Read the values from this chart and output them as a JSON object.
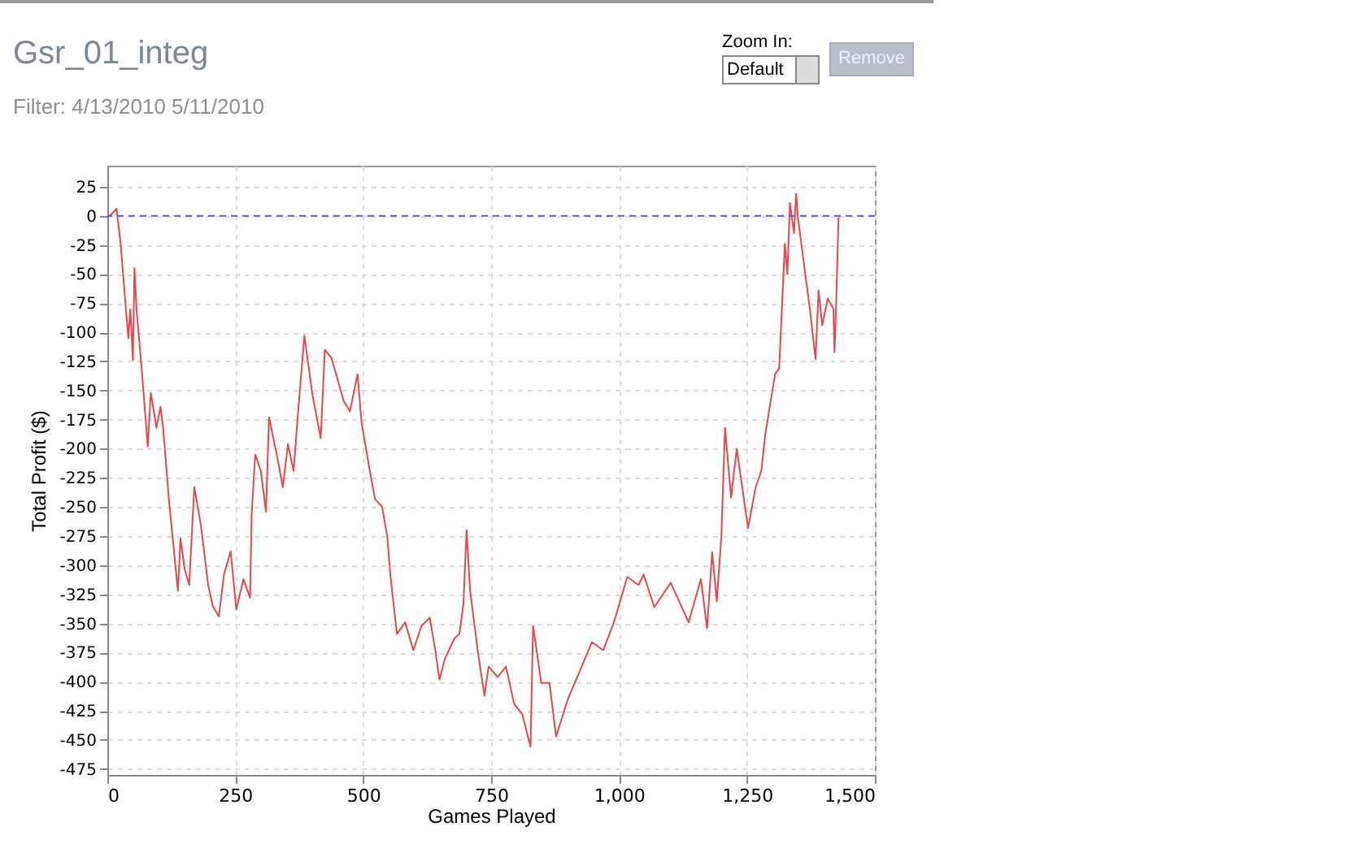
{
  "chart_data": {
    "type": "line",
    "title": "Gsr_01_integ",
    "subtitle": "Filter: 4/13/2010 5/11/2010",
    "xlabel": "Games Played",
    "ylabel": "Total Profit ($)",
    "annotations": [
      "Zoom In:",
      "Default",
      "Remove"
    ],
    "x": [
      0,
      7,
      18,
      26,
      41,
      45,
      50,
      53,
      57,
      68,
      79,
      85,
      96,
      104,
      109,
      121,
      138,
      143,
      151,
      160,
      170,
      183,
      197,
      206,
      218,
      228,
      241,
      252,
      266,
      279,
      282,
      289,
      300,
      310,
      316,
      332,
      343,
      353,
      364,
      372,
      385,
      401,
      417,
      425,
      438,
      462,
      474,
      489,
      497,
      513,
      523,
      537,
      547,
      553,
      566,
      582,
      598,
      614,
      630,
      641,
      649,
      660,
      678,
      688,
      696,
      702,
      709,
      725,
      737,
      745,
      763,
      779,
      795,
      811,
      827,
      832,
      848,
      864,
      877,
      900,
      927,
      947,
      969,
      990,
      1016,
      1038,
      1048,
      1069,
      1101,
      1136,
      1160,
      1172,
      1182,
      1191,
      1200,
      1207,
      1219,
      1230,
      1252,
      1267,
      1278,
      1286,
      1305,
      1313,
      1324,
      1329,
      1334,
      1342,
      1346,
      1350,
      1361,
      1373,
      1384,
      1390,
      1397,
      1408,
      1419,
      1421,
      1424,
      1429
    ],
    "series": [
      {
        "color": "#e8474a",
        "values": [
          -1,
          1,
          6,
          -24,
          -105,
          -80,
          -124,
          -45,
          -80,
          -136,
          -198,
          -152,
          -182,
          -164,
          -182,
          -247,
          -322,
          -277,
          -303,
          -317,
          -233,
          -266,
          -317,
          -335,
          -344,
          -308,
          -288,
          -338,
          -312,
          -328,
          -257,
          -205,
          -219,
          -254,
          -173,
          -207,
          -233,
          -196,
          -219,
          -173,
          -103,
          -154,
          -191,
          -115,
          -122,
          -159,
          -168,
          -136,
          -178,
          -219,
          -243,
          -250,
          -275,
          -308,
          -359,
          -349,
          -373,
          -352,
          -345,
          -373,
          -398,
          -380,
          -363,
          -359,
          -333,
          -270,
          -322,
          -377,
          -412,
          -387,
          -396,
          -387,
          -419,
          -428,
          -456,
          -352,
          -401,
          -401,
          -447,
          -415,
          -387,
          -366,
          -373,
          -349,
          -310,
          -317,
          -308,
          -336,
          -315,
          -349,
          -312,
          -354,
          -289,
          -331,
          -275,
          -182,
          -242,
          -200,
          -268,
          -233,
          -219,
          -187,
          -136,
          -131,
          -24,
          -50,
          11,
          -15,
          19,
          -3,
          -40,
          -80,
          -123,
          -64,
          -94,
          -71,
          -80,
          -117,
          -80,
          -1
        ]
      }
    ],
    "xlim": [
      0,
      1500
    ],
    "xticks": [
      0,
      250,
      500,
      750,
      {
        "value": 1000,
        "label": "1,000"
      },
      {
        "value": 1250,
        "label": "1,250"
      },
      {
        "value": 1500,
        "label": "1,500"
      }
    ],
    "ylim": [
      -480,
      43
    ],
    "yticks": [
      25,
      0,
      -25,
      -50,
      -75,
      -100,
      -125,
      -150,
      -175,
      -200,
      -225,
      -250,
      -275,
      -300,
      -325,
      -350,
      -375,
      -400,
      -425,
      -450,
      -475
    ],
    "grid": true,
    "line_style": "solid",
    "ref_lines": [
      {
        "axis": "y",
        "value": 0,
        "color": "#5a5ae0",
        "line_style": "dashed"
      }
    ]
  }
}
